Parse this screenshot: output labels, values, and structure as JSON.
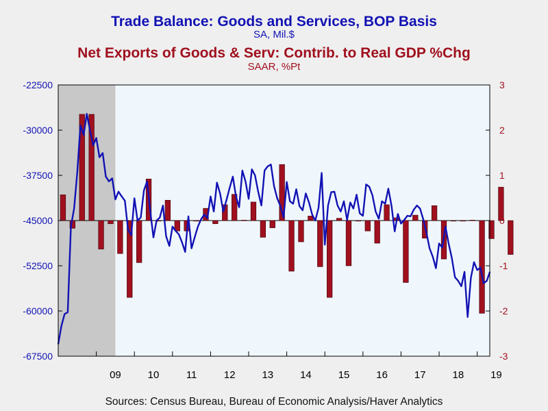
{
  "chart_data": {
    "type": "bar+line",
    "title_1": "Trade Balance: Goods and Services, BOP Basis",
    "subtitle_1": "SA, Mil.$",
    "title_2": "Net Exports of Goods & Serv: Contrib. to Real GDP %Chg",
    "subtitle_2": "SAAR, %Pt",
    "source": "Sources:  Census Bureau, Bureau of Economic Analysis/Haver Analytics",
    "x_range": [
      2008.0,
      2019.33
    ],
    "x_tick_labels": [
      "09",
      "10",
      "11",
      "12",
      "13",
      "14",
      "15",
      "16",
      "17",
      "18",
      "19"
    ],
    "x_tick_positions": [
      2009,
      2010,
      2011,
      2012,
      2013,
      2014,
      2015,
      2016,
      2017,
      2018,
      2019
    ],
    "recession_shading": [
      2008.0,
      2009.5
    ],
    "left_axis": {
      "range": [
        -67500,
        -22500
      ],
      "ticks": [
        -22500,
        -30000,
        -37500,
        -45000,
        -52500,
        -60000,
        -67500
      ],
      "tick_labels": [
        "-22500",
        "-30000",
        "-37500",
        "-45000",
        "-52500",
        "-60000",
        "-67500"
      ],
      "color": "#1212b4"
    },
    "right_axis": {
      "range": [
        -3,
        3
      ],
      "ticks": [
        3,
        2,
        1,
        0,
        -1,
        -2,
        -3
      ],
      "tick_labels": [
        "3",
        "2",
        "1",
        "0",
        "-1",
        "-2",
        "-3"
      ],
      "color": "#a0101e"
    },
    "series": [
      {
        "name": "Trade Balance: Goods and Services, BOP Basis",
        "axis": "left",
        "kind": "line",
        "color": "#1212b4",
        "start": 2008.0,
        "step": 0.0833333,
        "values": [
          -65500,
          -62500,
          -60500,
          -60200,
          -46000,
          -43000,
          -37000,
          -29200,
          -30800,
          -27300,
          -30000,
          -32500,
          -31300,
          -34500,
          -33800,
          -37700,
          -38500,
          -38000,
          -41500,
          -40200,
          -41000,
          -41700,
          -46500,
          -47400,
          -41300,
          -45000,
          -44500,
          -40000,
          -38500,
          -43500,
          -47800,
          -45000,
          -44500,
          -42500,
          -47600,
          -49200,
          -46000,
          -46700,
          -47300,
          -48600,
          -50200,
          -44300,
          -49600,
          -47800,
          -46000,
          -44800,
          -44000,
          -44600,
          -41000,
          -43500,
          -38700,
          -40500,
          -43500,
          -41600,
          -39600,
          -37700,
          -41000,
          -42800,
          -36700,
          -38500,
          -41400,
          -36500,
          -37500,
          -40200,
          -42500,
          -36700,
          -36000,
          -35700,
          -39300,
          -41300,
          -42600,
          -44500,
          -38600,
          -41800,
          -42200,
          -39800,
          -42600,
          -43300,
          -40500,
          -42000,
          -44000,
          -45000,
          -42900,
          -37100,
          -49000,
          -42500,
          -40300,
          -40200,
          -42500,
          -43500,
          -41800,
          -44900,
          -42000,
          -43000,
          -40700,
          -43800,
          -44200,
          -39000,
          -39400,
          -40800,
          -43500,
          -44700,
          -41800,
          -42200,
          -39700,
          -42500,
          -46800,
          -43900,
          -45500,
          -44900,
          -44200,
          -44300,
          -43200,
          -42500,
          -43000,
          -44800,
          -47000,
          -49600,
          -51000,
          -52900,
          -48800,
          -49500,
          -46000,
          -48800,
          -51200,
          -54400,
          -55000,
          -55900,
          -53500,
          -61000,
          -54500,
          -51900,
          -53200,
          -52800,
          -55400,
          -55000,
          -53500
        ]
      },
      {
        "name": "Net Exports of Goods & Serv: Contrib. to Real GDP %Chg",
        "axis": "right",
        "kind": "bar",
        "color": "#a0101e",
        "start": 2008.0,
        "step": 0.25,
        "values": [
          0.57,
          -0.17,
          2.35,
          2.35,
          -0.63,
          -0.07,
          -0.73,
          -1.7,
          -0.93,
          0.92,
          0.0,
          0.45,
          -0.23,
          -0.23,
          0.0,
          0.27,
          -0.07,
          0.35,
          0.58,
          0.01,
          0.41,
          -0.37,
          -0.16,
          1.24,
          -1.12,
          -0.47,
          0.1,
          -1.02,
          -1.7,
          0.05,
          -1.0,
          0.0,
          -0.23,
          -0.5,
          0.35,
          0.06,
          -1.37,
          0.12,
          -0.39,
          0.33,
          -0.85,
          -0.01,
          0.0,
          0.01,
          -2.05,
          -0.4,
          0.74,
          -0.75
        ]
      }
    ]
  }
}
